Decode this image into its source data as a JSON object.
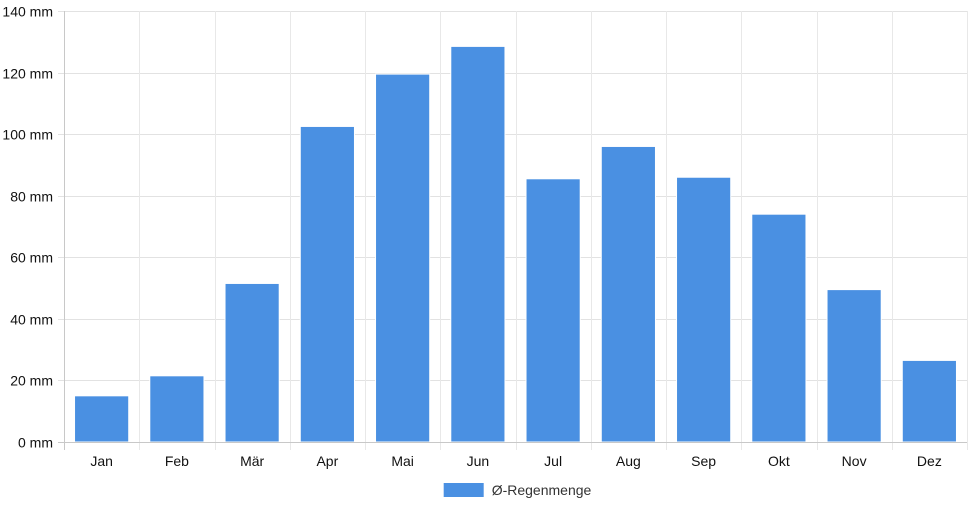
{
  "chart_data": {
    "type": "bar",
    "title": "",
    "xlabel": "",
    "ylabel": "",
    "categories": [
      "Jan",
      "Feb",
      "Mär",
      "Apr",
      "Mai",
      "Jun",
      "Jul",
      "Aug",
      "Sep",
      "Okt",
      "Nov",
      "Dez"
    ],
    "series": [
      {
        "name": "Ø-Regenmenge",
        "color": "#4a90e2",
        "values": [
          15,
          21.5,
          51.5,
          102.5,
          119.5,
          128.5,
          85.5,
          96,
          86,
          74,
          49.5,
          26.5
        ]
      }
    ],
    "ylim": [
      0,
      140
    ],
    "yticks": [
      0,
      20,
      40,
      60,
      80,
      100,
      120,
      140
    ],
    "ytick_labels": [
      "0 mm",
      "20 mm",
      "40 mm",
      "60 mm",
      "80 mm",
      "100 mm",
      "120 mm",
      "140 mm"
    ],
    "grid": true,
    "legend_position": "bottom"
  }
}
